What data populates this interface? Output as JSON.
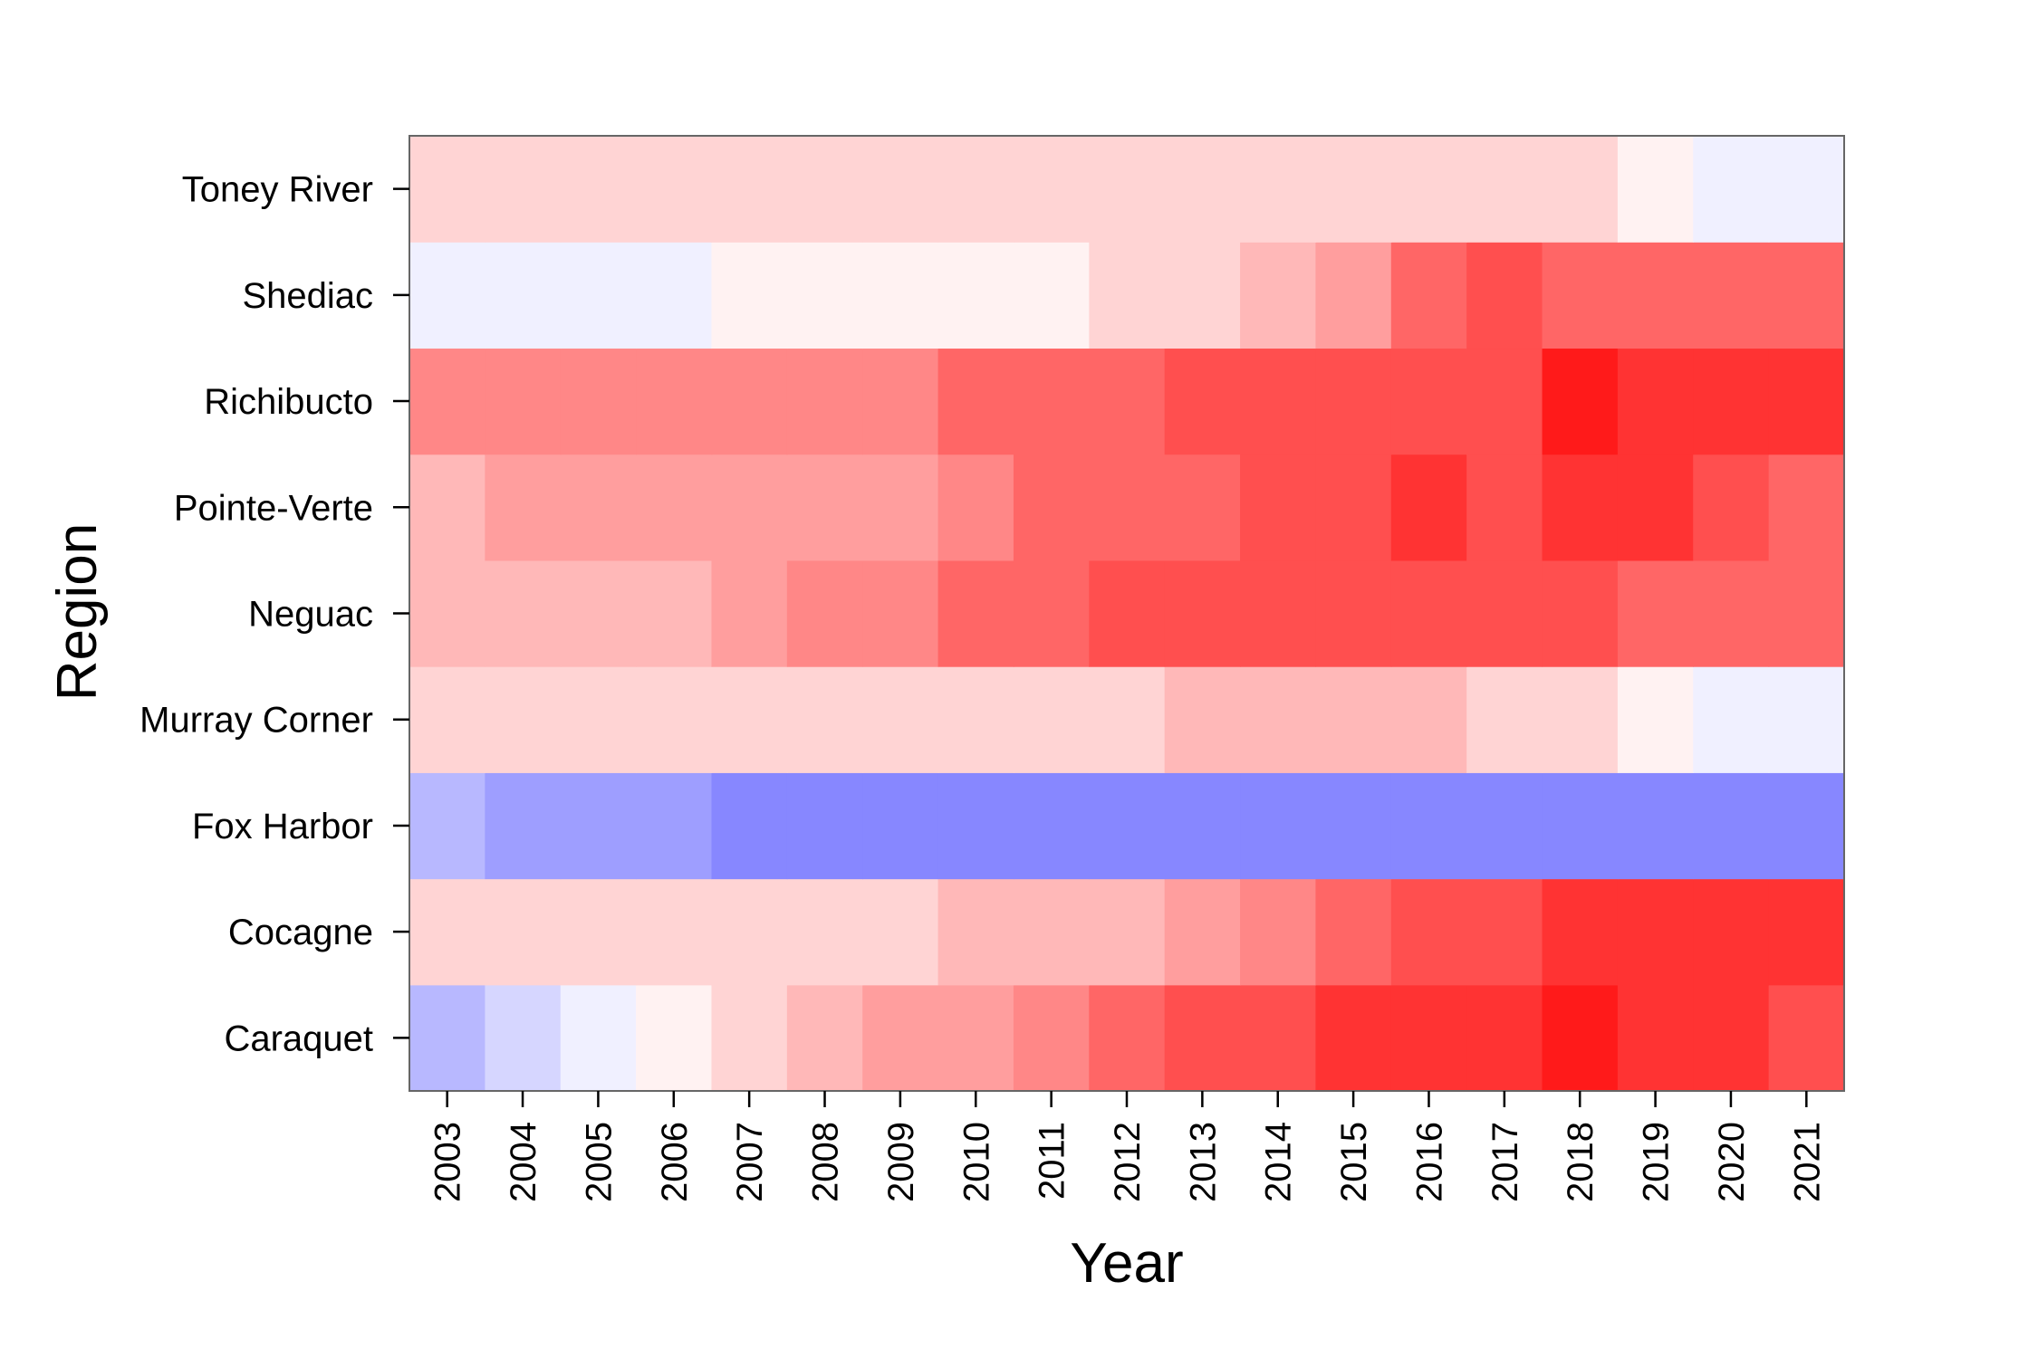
{
  "chart_data": {
    "type": "heatmap",
    "title": "",
    "xlabel": "Year",
    "ylabel": "Region",
    "x": [
      "2003",
      "2004",
      "2005",
      "2006",
      "2007",
      "2008",
      "2009",
      "2010",
      "2011",
      "2012",
      "2013",
      "2014",
      "2015",
      "2016",
      "2017",
      "2018",
      "2019",
      "2020",
      "2021"
    ],
    "y": [
      "Caraquet",
      "Cocagne",
      "Fox Harbor",
      "Murray Corner",
      "Neguac",
      "Pointe-Verte",
      "Richibucto",
      "Shediac",
      "Toney River"
    ],
    "color_scale": {
      "type": "diverging",
      "low_color": "#0000ff",
      "mid_color": "#ffffff",
      "high_color": "#ff0000",
      "range": [
        -1,
        1
      ]
    },
    "values": [
      [
        -0.28,
        -0.16,
        -0.06,
        0.05,
        0.17,
        0.28,
        0.38,
        0.38,
        0.47,
        0.6,
        0.69,
        0.69,
        0.8,
        0.8,
        0.8,
        0.9,
        0.8,
        0.8,
        0.69
      ],
      [
        0.17,
        0.17,
        0.17,
        0.17,
        0.17,
        0.17,
        0.17,
        0.28,
        0.28,
        0.28,
        0.38,
        0.47,
        0.6,
        0.69,
        0.69,
        0.8,
        0.8,
        0.8,
        0.8
      ],
      [
        -0.28,
        -0.38,
        -0.38,
        -0.38,
        -0.47,
        -0.47,
        -0.47,
        -0.47,
        -0.47,
        -0.47,
        -0.47,
        -0.47,
        -0.47,
        -0.47,
        -0.47,
        -0.47,
        -0.47,
        -0.47,
        -0.47
      ],
      [
        0.17,
        0.17,
        0.17,
        0.17,
        0.17,
        0.17,
        0.17,
        0.17,
        0.17,
        0.17,
        0.28,
        0.28,
        0.28,
        0.28,
        0.17,
        0.17,
        0.05,
        -0.06,
        -0.06
      ],
      [
        0.28,
        0.28,
        0.28,
        0.28,
        0.38,
        0.47,
        0.47,
        0.6,
        0.6,
        0.69,
        0.69,
        0.69,
        0.69,
        0.69,
        0.69,
        0.69,
        0.6,
        0.6,
        0.6
      ],
      [
        0.28,
        0.38,
        0.38,
        0.38,
        0.38,
        0.38,
        0.38,
        0.47,
        0.6,
        0.6,
        0.6,
        0.69,
        0.69,
        0.8,
        0.69,
        0.8,
        0.8,
        0.69,
        0.6
      ],
      [
        0.47,
        0.47,
        0.47,
        0.47,
        0.47,
        0.47,
        0.47,
        0.6,
        0.6,
        0.6,
        0.69,
        0.69,
        0.69,
        0.69,
        0.69,
        0.9,
        0.8,
        0.8,
        0.8
      ],
      [
        -0.06,
        -0.06,
        -0.06,
        -0.06,
        0.05,
        0.05,
        0.05,
        0.05,
        0.05,
        0.17,
        0.17,
        0.28,
        0.38,
        0.6,
        0.69,
        0.6,
        0.6,
        0.6,
        0.6
      ],
      [
        0.17,
        0.17,
        0.17,
        0.17,
        0.17,
        0.17,
        0.17,
        0.17,
        0.17,
        0.17,
        0.17,
        0.17,
        0.17,
        0.17,
        0.17,
        0.17,
        0.05,
        -0.06,
        -0.06
      ]
    ]
  }
}
